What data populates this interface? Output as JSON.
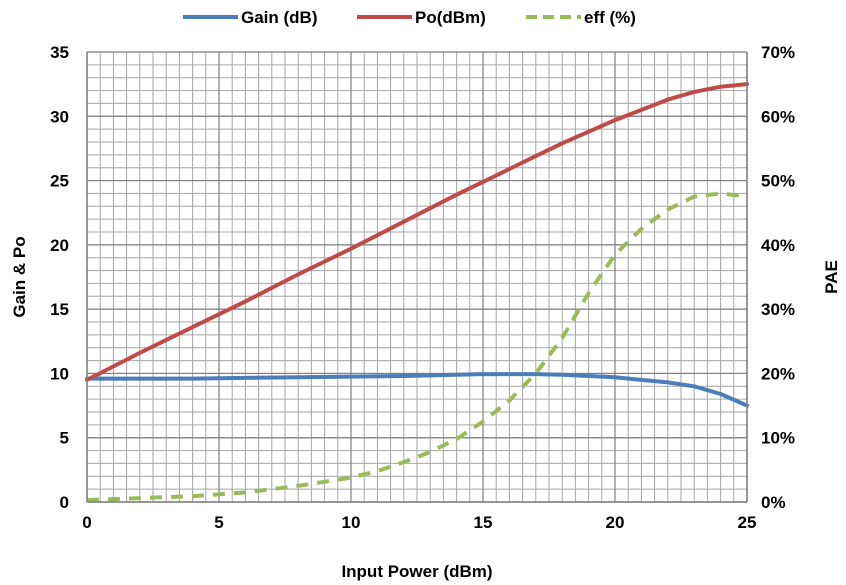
{
  "chart_data": {
    "type": "line",
    "xlabel": "Input Power (dBm)",
    "ylabel": "Gain & Po",
    "y2label": "PAE",
    "xlim": [
      0,
      25
    ],
    "ylim": [
      0,
      35
    ],
    "y2lim": [
      0,
      70
    ],
    "x_ticks": [
      0,
      5,
      10,
      15,
      20,
      25
    ],
    "y_ticks": [
      0,
      5,
      10,
      15,
      20,
      25,
      30,
      35
    ],
    "y2_ticks": [
      "0%",
      "10%",
      "20%",
      "30%",
      "40%",
      "50%",
      "60%",
      "70%"
    ],
    "grid": true,
    "legend_position": "top",
    "series": [
      {
        "name": "Gain (dB)",
        "axis": "left",
        "color": "#4a7ebb",
        "style": "solid",
        "x": [
          0,
          2,
          4,
          6,
          8,
          10,
          12,
          14,
          15,
          16,
          17,
          18,
          19,
          20,
          21,
          22,
          23,
          24,
          25
        ],
        "values": [
          9.6,
          9.6,
          9.6,
          9.65,
          9.7,
          9.75,
          9.8,
          9.9,
          9.95,
          9.95,
          9.95,
          9.9,
          9.8,
          9.7,
          9.5,
          9.3,
          9.0,
          8.4,
          7.5
        ]
      },
      {
        "name": "Po(dBm)",
        "axis": "left",
        "color": "#be4b48",
        "style": "solid",
        "x": [
          0,
          2,
          4,
          6,
          8,
          10,
          12,
          14,
          15,
          16,
          17,
          18,
          19,
          20,
          21,
          22,
          23,
          24,
          25
        ],
        "values": [
          9.5,
          11.6,
          13.6,
          15.6,
          17.7,
          19.7,
          21.8,
          23.9,
          24.9,
          25.9,
          26.9,
          27.9,
          28.8,
          29.7,
          30.5,
          31.3,
          31.9,
          32.3,
          32.5
        ]
      },
      {
        "name": "eff (%)",
        "axis": "right",
        "color": "#9bbb59",
        "style": "dashed",
        "x": [
          0,
          2,
          4,
          6,
          8,
          10,
          11,
          12,
          13,
          14,
          15,
          16,
          17,
          18,
          19,
          20,
          21,
          22,
          23,
          24,
          25
        ],
        "values": [
          0.3,
          0.6,
          0.9,
          1.5,
          2.5,
          3.8,
          4.8,
          6.2,
          7.8,
          9.8,
          12.5,
          15.8,
          20.0,
          25.5,
          32.5,
          38.5,
          42.5,
          45.5,
          47.5,
          48.0,
          47.5
        ]
      }
    ]
  }
}
